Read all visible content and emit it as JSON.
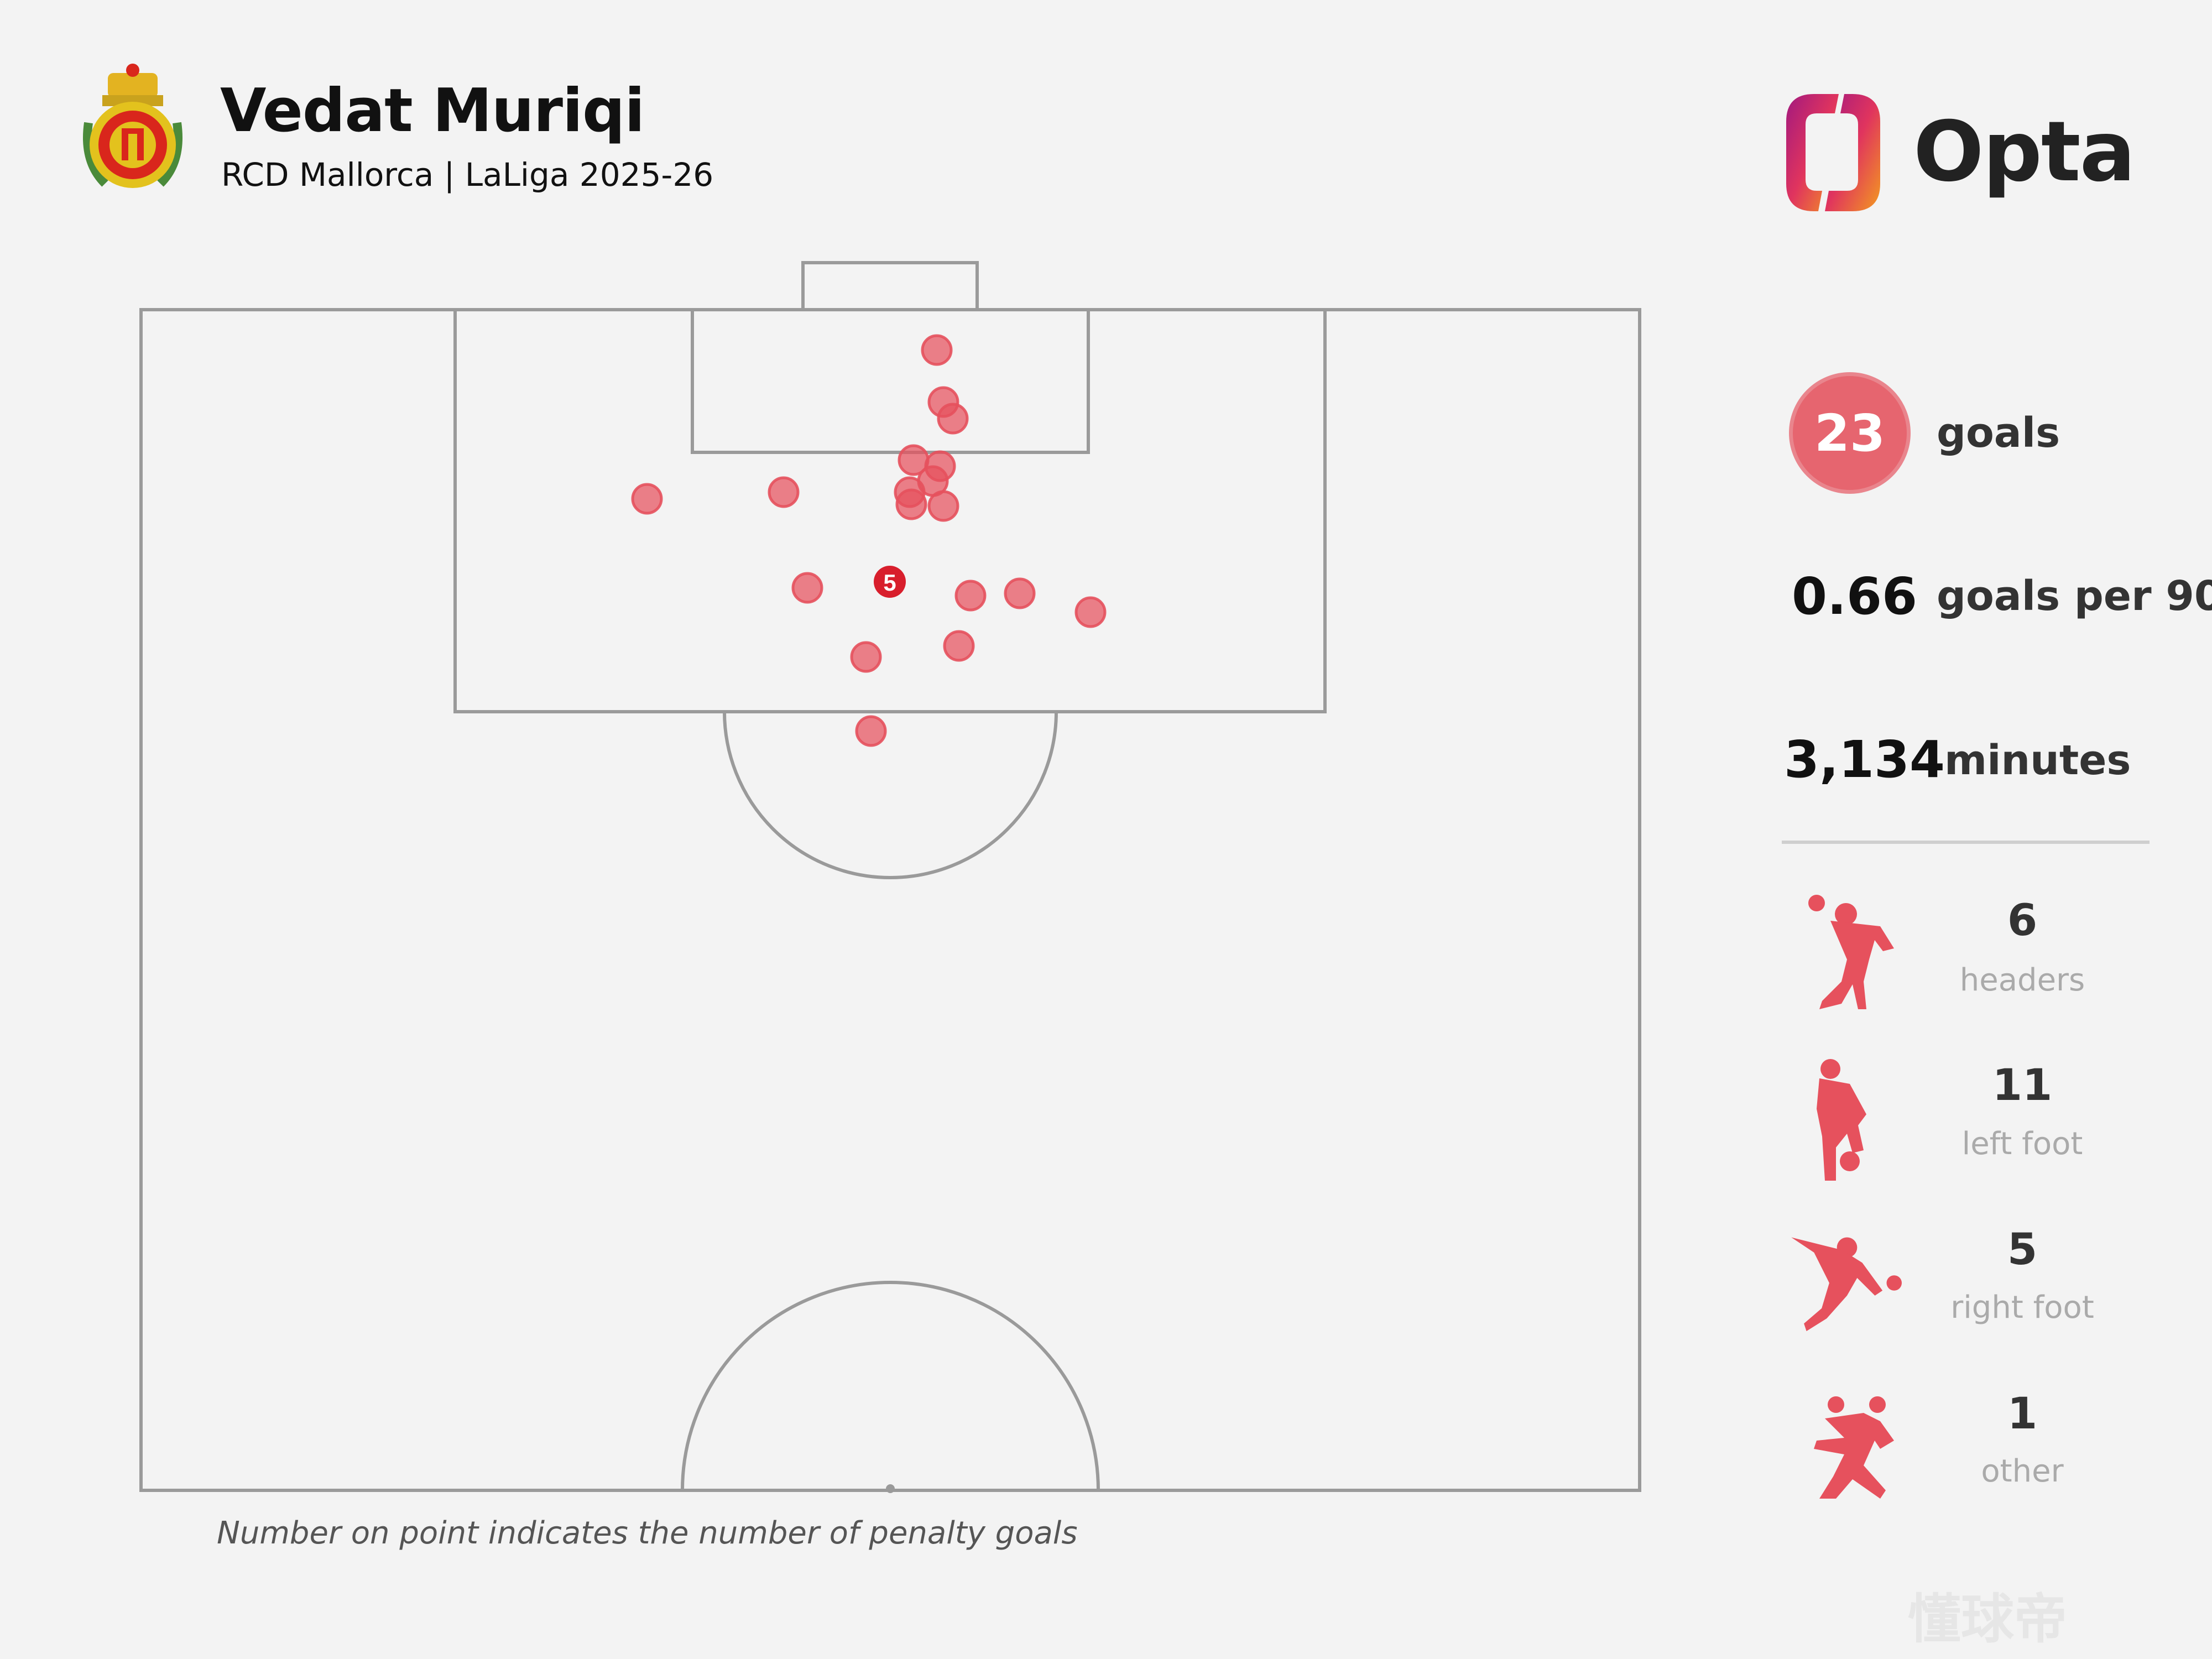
{
  "header": {
    "title": "Vedat Muriqi",
    "subtitle": "RCD Mallorca | LaLiga 2025-26",
    "logo_text": "Opta"
  },
  "caption": "Number on point indicates the number of penalty goals",
  "stats": {
    "goals_value": "23",
    "goals_label": "goals",
    "per90_value": "0.66",
    "per90_label": "goals per 90",
    "minutes_value": "3,134",
    "minutes_label": "minutes"
  },
  "breakdown": [
    {
      "count": "6",
      "label": "headers",
      "icon": "header-icon"
    },
    {
      "count": "11",
      "label": "left foot",
      "icon": "left-foot-icon"
    },
    {
      "count": "5",
      "label": "right foot",
      "icon": "right-foot-icon"
    },
    {
      "count": "1",
      "label": "other",
      "icon": "other-icon"
    }
  ],
  "penalty_marker": {
    "label": "5"
  },
  "watermark": "懂球帝",
  "colors": {
    "goal": "#e6515d",
    "penalty": "#d81e2c",
    "pitch_line": "#9a9a9a",
    "background": "#f3f3f3"
  }
}
